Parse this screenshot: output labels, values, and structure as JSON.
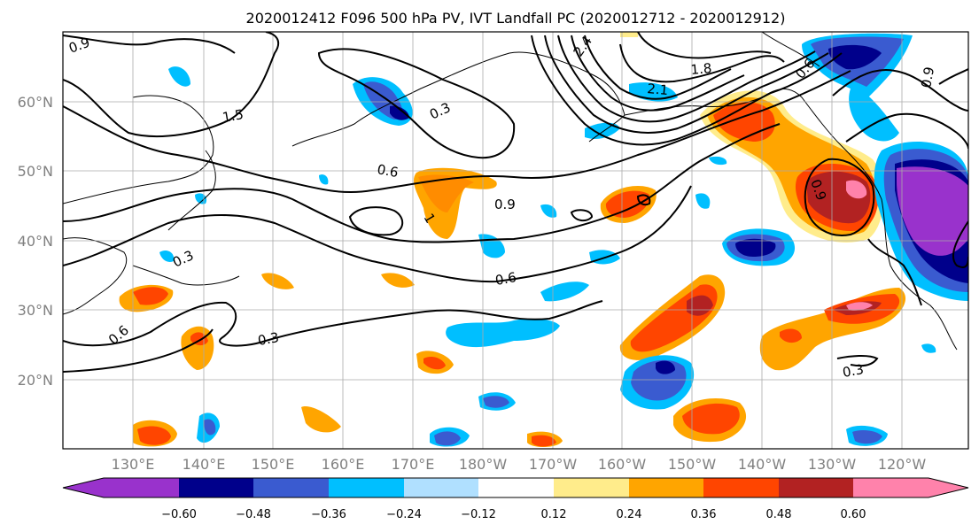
{
  "title": "2020012412 F096 500 hPa PV, IVT Landfall PC (2020012712 - 2020012912)",
  "map": {
    "lon_ticks": [
      "130°E",
      "140°E",
      "150°E",
      "160°E",
      "170°E",
      "180°W",
      "170°W",
      "160°W",
      "150°W",
      "140°W",
      "130°W",
      "120°W"
    ],
    "lat_ticks": [
      "60°N",
      "50°N",
      "40°N",
      "30°N",
      "20°N"
    ],
    "grid": true
  },
  "colorbar": {
    "ticks": [
      "−0.60",
      "−0.48",
      "−0.36",
      "−0.24",
      "−0.12",
      "0.12",
      "0.24",
      "0.36",
      "0.48",
      "0.60"
    ],
    "colors": [
      "#9932cc",
      "#00008b",
      "#3a5bd0",
      "#00bfff",
      "#b0e0ff",
      "#ffffff",
      "#ffec8b",
      "#ffa500",
      "#ff4500",
      "#b22222",
      "#ff82ab"
    ],
    "extend": "both"
  },
  "contour_labels": [
    "0.9",
    "1.5",
    "0.3",
    "0.6",
    "2.4",
    "2.1",
    "1.8",
    "0.9",
    "0.9",
    "0.6",
    "1",
    "0.3",
    "0.6",
    "0.3",
    "0.6",
    "0.3",
    "0.9"
  ]
}
